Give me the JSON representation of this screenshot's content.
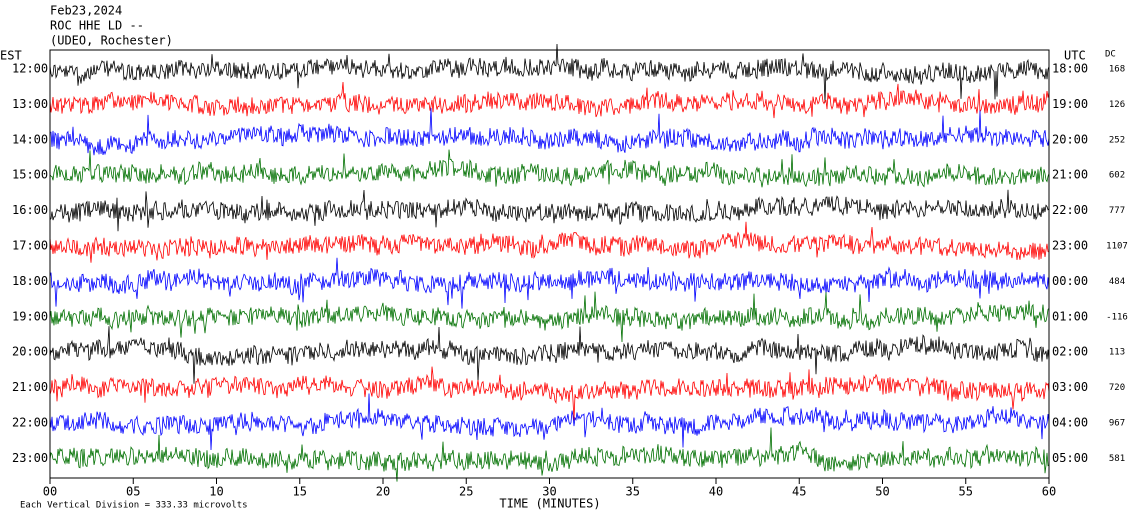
{
  "header": {
    "date": "Feb23,2024",
    "station": "ROC HHE LD --",
    "network": "(UDEO, Rochester)"
  },
  "left_axis": {
    "title": "EST",
    "labels": [
      "12:00",
      "13:00",
      "14:00",
      "15:00",
      "16:00",
      "17:00",
      "18:00",
      "19:00",
      "20:00",
      "21:00",
      "22:00",
      "23:00"
    ]
  },
  "right_axis": {
    "title": "UTC",
    "labels": [
      "18:00",
      "19:00",
      "20:00",
      "21:00",
      "22:00",
      "23:00",
      "00:00",
      "01:00",
      "02:00",
      "03:00",
      "04:00",
      "05:00"
    ]
  },
  "dc": {
    "title": "DC",
    "values": [
      "168",
      "126",
      "252",
      "602",
      "777",
      "1107",
      "484",
      "-116",
      "113",
      "720",
      "967",
      "581"
    ]
  },
  "x_axis": {
    "title": "TIME (MINUTES)",
    "ticks": [
      "00",
      "05",
      "10",
      "15",
      "20",
      "25",
      "30",
      "35",
      "40",
      "45",
      "50",
      "55",
      "60"
    ]
  },
  "footer": {
    "scale_note": "Each Vertical Division =  333.33 microvolts"
  },
  "trace_colors": [
    "#000000",
    "#ff0000",
    "#0000ff",
    "#007000"
  ]
}
